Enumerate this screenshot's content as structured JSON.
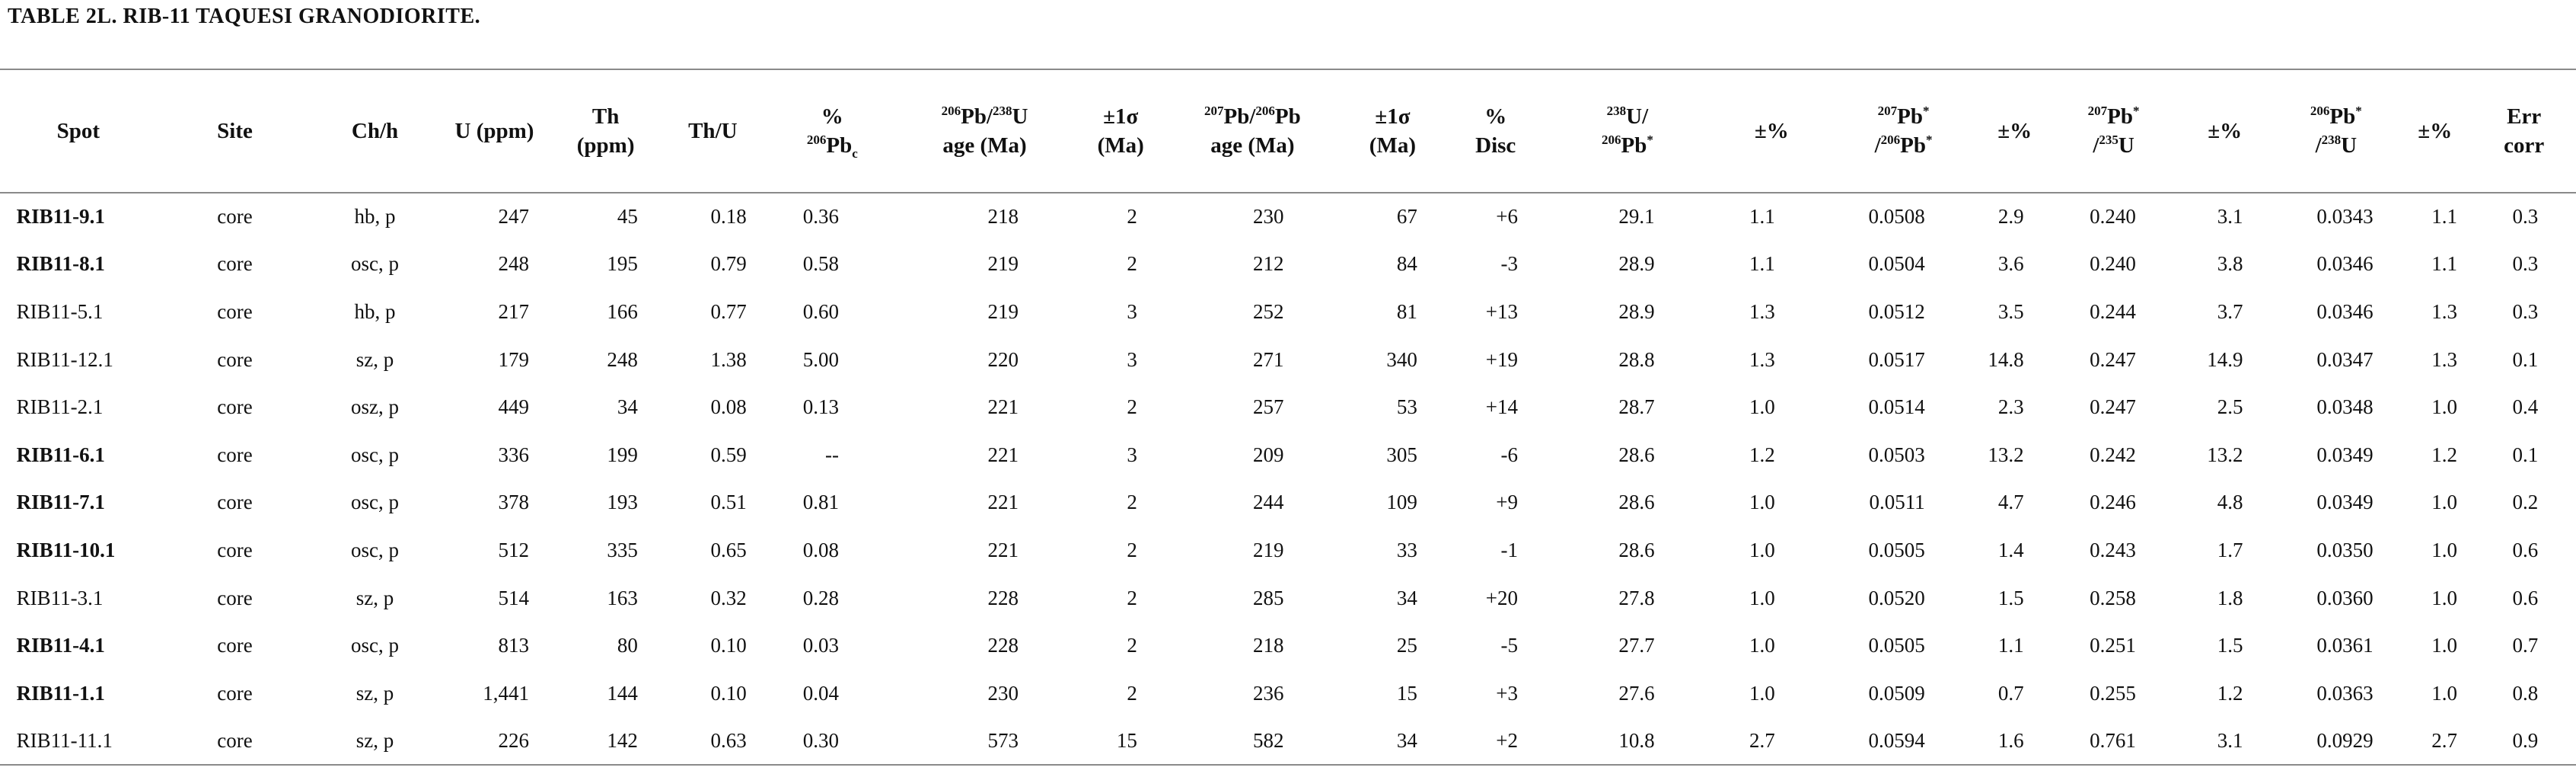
{
  "title": "TABLE 2L. RIB-11 TAQUESI GRANODIORITE.",
  "table": {
    "header": [
      [
        [
          "Spot"
        ]
      ],
      [
        [
          "Site"
        ]
      ],
      [
        [
          "Ch/h"
        ]
      ],
      [
        [
          "U (ppm)"
        ]
      ],
      [
        [
          "Th"
        ],
        [
          "(ppm)"
        ]
      ],
      [
        [
          "Th/U"
        ]
      ],
      [
        [
          "%"
        ],
        [
          {
            "sup": "206"
          },
          "Pb",
          {
            "sub": "c"
          }
        ]
      ],
      [
        [
          {
            "sup": "206"
          },
          "Pb/",
          {
            "sup": "238"
          },
          "U"
        ],
        [
          "age (Ma)"
        ]
      ],
      [
        [
          "±1σ"
        ],
        [
          "(Ma)"
        ]
      ],
      [
        [
          {
            "sup": "207"
          },
          "Pb/",
          {
            "sup": "206"
          },
          "Pb"
        ],
        [
          "age (Ma)"
        ]
      ],
      [
        [
          "±1σ"
        ],
        [
          "(Ma)"
        ]
      ],
      [
        [
          "%"
        ],
        [
          "Disc"
        ]
      ],
      [
        [
          {
            "sup": "238"
          },
          "U/"
        ],
        [
          {
            "sup": "206"
          },
          "Pb",
          {
            "sup": "*"
          }
        ]
      ],
      [
        [
          "±%"
        ]
      ],
      [
        [
          {
            "sup": "207"
          },
          "Pb",
          {
            "sup": "*"
          }
        ],
        [
          "/",
          {
            "sup": "206"
          },
          "Pb",
          {
            "sup": "*"
          }
        ]
      ],
      [
        [
          "±%"
        ]
      ],
      [
        [
          {
            "sup": "207"
          },
          "Pb",
          {
            "sup": "*"
          }
        ],
        [
          "/",
          {
            "sup": "235"
          },
          "U"
        ]
      ],
      [
        [
          "±%"
        ]
      ],
      [
        [
          {
            "sup": "206"
          },
          "Pb",
          {
            "sup": "*"
          }
        ],
        [
          "/",
          {
            "sup": "238"
          },
          "U"
        ]
      ],
      [
        [
          "±%"
        ]
      ],
      [
        [
          "Err"
        ],
        [
          "corr"
        ]
      ]
    ],
    "rows": [
      {
        "bold": true,
        "cells": [
          "RIB11-9.1",
          "core",
          "hb, p",
          "247",
          "45",
          "0.18",
          "0.36",
          "218",
          "2",
          "230",
          "67",
          "+6",
          "29.1",
          "1.1",
          "0.0508",
          "2.9",
          "0.240",
          "3.1",
          "0.0343",
          "1.1",
          "0.3"
        ]
      },
      {
        "bold": true,
        "cells": [
          "RIB11-8.1",
          "core",
          "osc, p",
          "248",
          "195",
          "0.79",
          "0.58",
          "219",
          "2",
          "212",
          "84",
          "-3",
          "28.9",
          "1.1",
          "0.0504",
          "3.6",
          "0.240",
          "3.8",
          "0.0346",
          "1.1",
          "0.3"
        ]
      },
      {
        "bold": false,
        "cells": [
          "RIB11-5.1",
          "core",
          "hb, p",
          "217",
          "166",
          "0.77",
          "0.60",
          "219",
          "3",
          "252",
          "81",
          "+13",
          "28.9",
          "1.3",
          "0.0512",
          "3.5",
          "0.244",
          "3.7",
          "0.0346",
          "1.3",
          "0.3"
        ]
      },
      {
        "bold": false,
        "cells": [
          "RIB11-12.1",
          "core",
          "sz, p",
          "179",
          "248",
          "1.38",
          "5.00",
          "220",
          "3",
          "271",
          "340",
          "+19",
          "28.8",
          "1.3",
          "0.0517",
          "14.8",
          "0.247",
          "14.9",
          "0.0347",
          "1.3",
          "0.1"
        ]
      },
      {
        "bold": false,
        "cells": [
          "RIB11-2.1",
          "core",
          "osz, p",
          "449",
          "34",
          "0.08",
          "0.13",
          "221",
          "2",
          "257",
          "53",
          "+14",
          "28.7",
          "1.0",
          "0.0514",
          "2.3",
          "0.247",
          "2.5",
          "0.0348",
          "1.0",
          "0.4"
        ]
      },
      {
        "bold": true,
        "cells": [
          "RIB11-6.1",
          "core",
          "osc, p",
          "336",
          "199",
          "0.59",
          "--",
          "221",
          "3",
          "209",
          "305",
          "-6",
          "28.6",
          "1.2",
          "0.0503",
          "13.2",
          "0.242",
          "13.2",
          "0.0349",
          "1.2",
          "0.1"
        ]
      },
      {
        "bold": true,
        "cells": [
          "RIB11-7.1",
          "core",
          "osc, p",
          "378",
          "193",
          "0.51",
          "0.81",
          "221",
          "2",
          "244",
          "109",
          "+9",
          "28.6",
          "1.0",
          "0.0511",
          "4.7",
          "0.246",
          "4.8",
          "0.0349",
          "1.0",
          "0.2"
        ]
      },
      {
        "bold": true,
        "cells": [
          "RIB11-10.1",
          "core",
          "osc, p",
          "512",
          "335",
          "0.65",
          "0.08",
          "221",
          "2",
          "219",
          "33",
          "-1",
          "28.6",
          "1.0",
          "0.0505",
          "1.4",
          "0.243",
          "1.7",
          "0.0350",
          "1.0",
          "0.6"
        ]
      },
      {
        "bold": false,
        "cells": [
          "RIB11-3.1",
          "core",
          "sz, p",
          "514",
          "163",
          "0.32",
          "0.28",
          "228",
          "2",
          "285",
          "34",
          "+20",
          "27.8",
          "1.0",
          "0.0520",
          "1.5",
          "0.258",
          "1.8",
          "0.0360",
          "1.0",
          "0.6"
        ]
      },
      {
        "bold": true,
        "cells": [
          "RIB11-4.1",
          "core",
          "osc, p",
          "813",
          "80",
          "0.10",
          "0.03",
          "228",
          "2",
          "218",
          "25",
          "-5",
          "27.7",
          "1.0",
          "0.0505",
          "1.1",
          "0.251",
          "1.5",
          "0.0361",
          "1.0",
          "0.7"
        ]
      },
      {
        "bold": true,
        "cells": [
          "RIB11-1.1",
          "core",
          "sz, p",
          "1,441",
          "144",
          "0.10",
          "0.04",
          "230",
          "2",
          "236",
          "15",
          "+3",
          "27.6",
          "1.0",
          "0.0509",
          "0.7",
          "0.255",
          "1.2",
          "0.0363",
          "1.0",
          "0.8"
        ]
      },
      {
        "bold": false,
        "cells": [
          "RIB11-11.1",
          "core",
          "sz, p",
          "226",
          "142",
          "0.63",
          "0.30",
          "573",
          "15",
          "582",
          "34",
          "+2",
          "10.8",
          "2.7",
          "0.0594",
          "1.6",
          "0.761",
          "3.1",
          "0.0929",
          "2.7",
          "0.9"
        ]
      }
    ]
  }
}
